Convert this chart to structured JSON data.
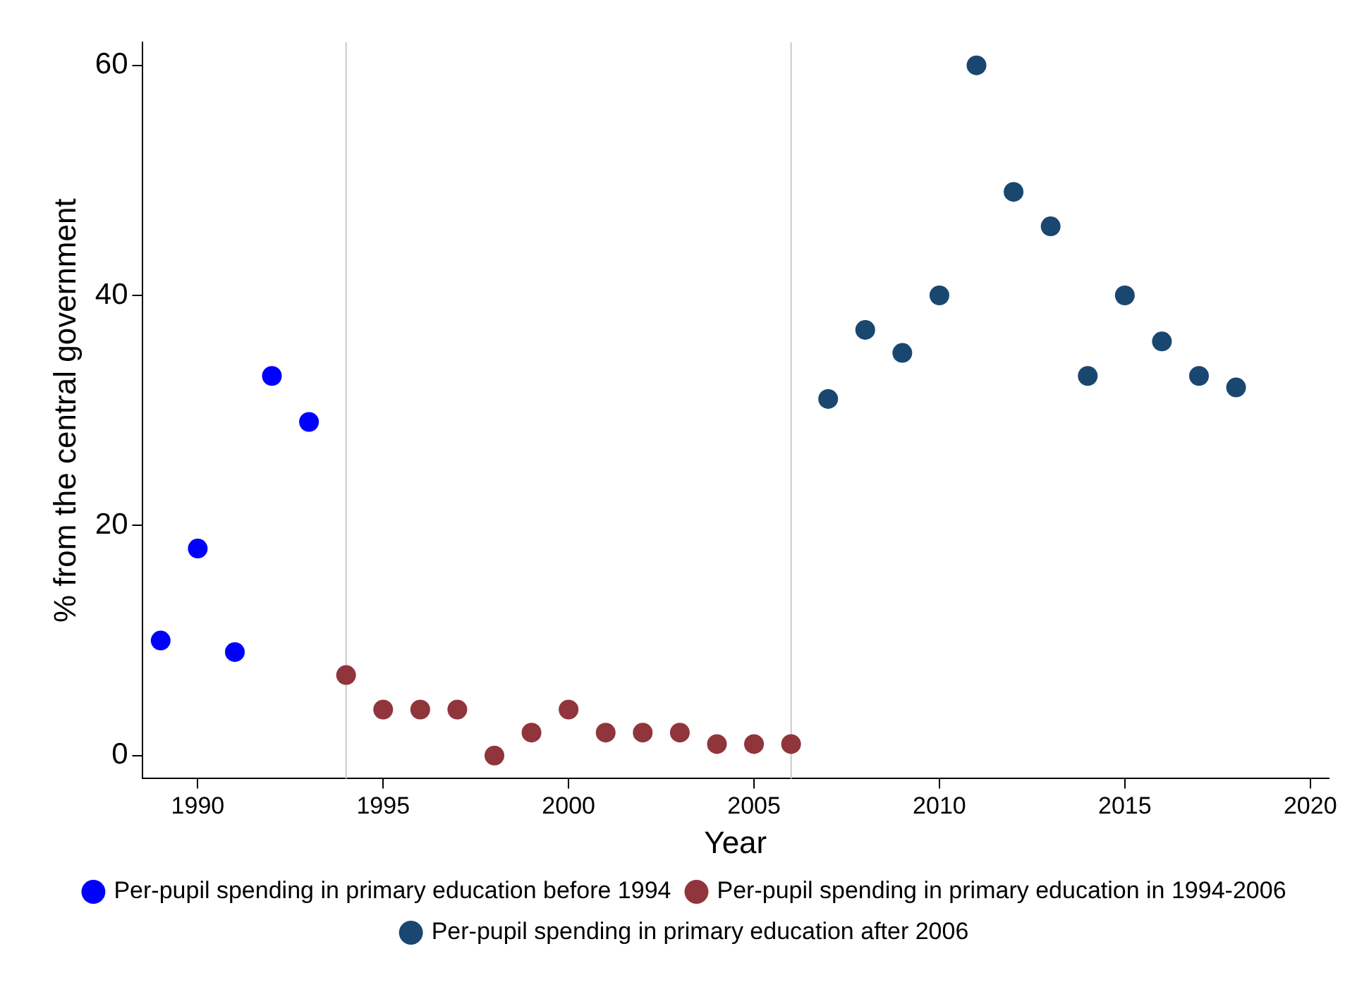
{
  "chart_data": {
    "type": "scatter",
    "xlabel": "Year",
    "ylabel": "% from the central government",
    "xlim": [
      1988.5,
      2020.5
    ],
    "xticks": [
      1990,
      1995,
      2000,
      2005,
      2010,
      2015,
      2020
    ],
    "ylim": [
      -2,
      62
    ],
    "yticks": [
      0,
      20,
      40,
      60
    ],
    "grid": false,
    "legend": "bottom",
    "marker": "circle",
    "ref_lines": [
      {
        "axis": "x",
        "value": 1994,
        "color": "#c8c8c8"
      },
      {
        "axis": "x",
        "value": 2006,
        "color": "#c8c8c8"
      }
    ],
    "series": [
      {
        "name": "Per-pupil spending in primary education before 1994",
        "color": "#0000ff",
        "x": [
          1989,
          1990,
          1991,
          1992,
          1993
        ],
        "values": [
          10,
          18,
          9,
          33,
          29
        ]
      },
      {
        "name": "Per-pupil spending in primary education in 1994-2006",
        "color": "#90353b",
        "x": [
          1994,
          1995,
          1996,
          1997,
          1998,
          1999,
          2000,
          2001,
          2002,
          2003,
          2004,
          2005,
          2006
        ],
        "values": [
          7,
          4,
          4,
          4,
          0,
          2,
          4,
          2,
          2,
          2,
          1,
          1,
          1
        ]
      },
      {
        "name": "Per-pupil spending in primary education after 2006",
        "color": "#1a476f",
        "x": [
          2007,
          2008,
          2009,
          2010,
          2011,
          2012,
          2013,
          2014,
          2015,
          2016,
          2017,
          2018
        ],
        "values": [
          31,
          37,
          35,
          40,
          60,
          49,
          46,
          33,
          40,
          36,
          33,
          32
        ]
      }
    ]
  }
}
